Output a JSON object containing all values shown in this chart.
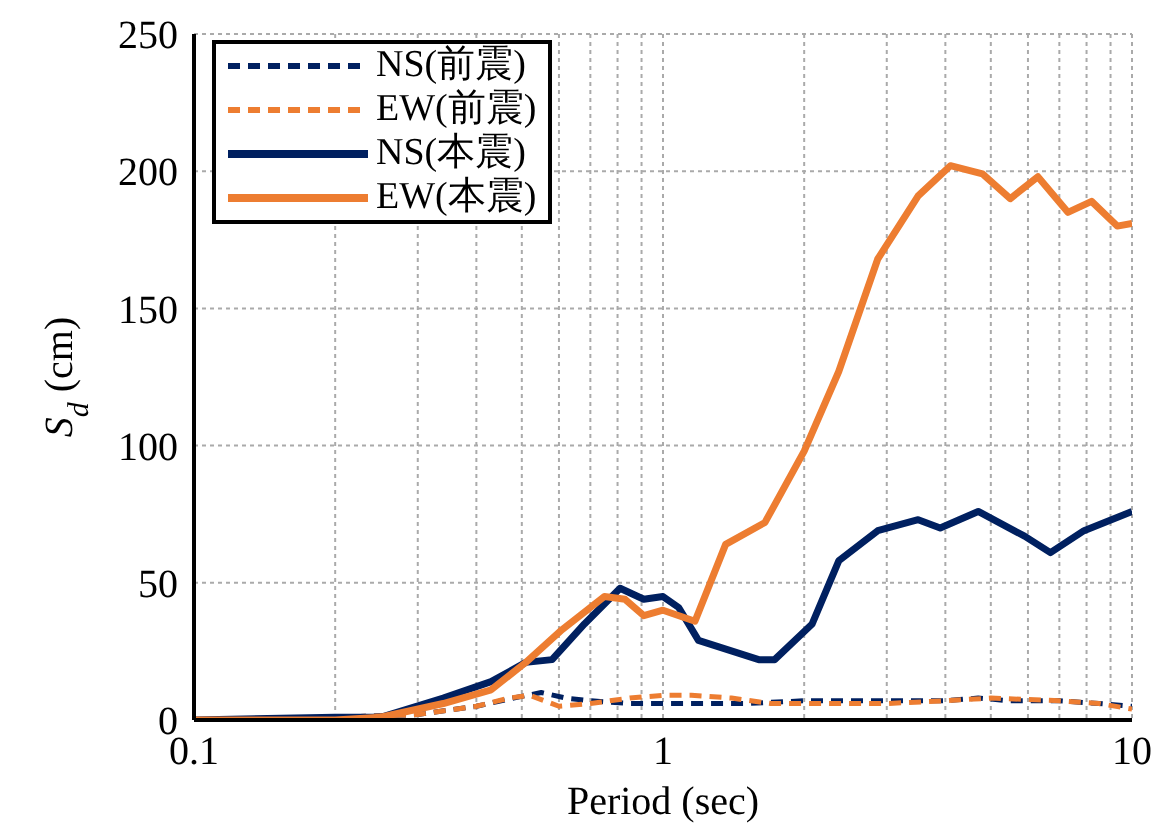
{
  "chart_data": {
    "type": "line",
    "xlabel": "Period (sec)",
    "ylabel": "S$_{d}$ (cm)",
    "log": "x",
    "xlim": [
      0.1,
      10
    ],
    "xticks": [
      0.1,
      {
        "value": 0.2,
        "label": null
      },
      {
        "value": 0.3,
        "label": null
      },
      {
        "value": 0.4,
        "label": null
      },
      {
        "value": 0.5,
        "label": null
      },
      {
        "value": 0.6,
        "label": null
      },
      {
        "value": 0.7,
        "label": null
      },
      {
        "value": 0.8,
        "label": null
      },
      {
        "value": 0.9,
        "label": null
      },
      1,
      {
        "value": 2,
        "label": null
      },
      {
        "value": 3,
        "label": null
      },
      {
        "value": 4,
        "label": null
      },
      {
        "value": 5,
        "label": null
      },
      {
        "value": 6,
        "label": null
      },
      {
        "value": 7,
        "label": null
      },
      {
        "value": 8,
        "label": null
      },
      {
        "value": 9,
        "label": null
      },
      10
    ],
    "ylim": [
      0,
      250
    ],
    "yticks": [
      0,
      50,
      100,
      150,
      200,
      250
    ],
    "grid": true,
    "legend": "top left",
    "marker": "none",
    "series": [
      {
        "name": "NS(前震)",
        "color": "#002060",
        "line_style": "dashed",
        "x": [
          0.1,
          0.2,
          0.3,
          0.4,
          0.48,
          0.55,
          0.62,
          0.7,
          0.85,
          1.0,
          1.2,
          1.5,
          2.0,
          2.5,
          3.0,
          4.0,
          4.7,
          5.5,
          7.0,
          8.5,
          10
        ],
        "values": [
          0,
          1,
          2,
          5,
          8,
          10,
          8,
          7,
          6,
          6,
          6,
          6,
          7,
          7,
          7,
          7,
          8,
          7,
          7,
          6,
          5
        ]
      },
      {
        "name": "EW(前震)",
        "color": "#ed7d31",
        "line_style": "dashed",
        "x": [
          0.1,
          0.2,
          0.3,
          0.4,
          0.47,
          0.52,
          0.6,
          0.7,
          0.85,
          1.0,
          1.15,
          1.4,
          1.7,
          2.0,
          2.5,
          3.0,
          4.0,
          5.0,
          7.0,
          8.5,
          10
        ],
        "values": [
          0,
          1,
          2,
          5,
          8,
          9,
          5,
          6,
          8,
          9,
          9,
          8,
          6,
          6,
          6,
          6,
          7,
          8,
          7,
          6,
          4
        ]
      },
      {
        "name": "NS(本震)",
        "color": "#002060",
        "line_style": "solid",
        "x": [
          0.1,
          0.2,
          0.25,
          0.34,
          0.43,
          0.51,
          0.58,
          0.68,
          0.81,
          0.91,
          1.0,
          1.08,
          1.19,
          1.6,
          1.73,
          2.08,
          2.37,
          2.87,
          3.5,
          3.9,
          4.7,
          5.9,
          6.7,
          7.9,
          10
        ],
        "values": [
          0,
          1,
          1,
          8,
          14,
          21,
          22,
          35,
          48,
          44,
          45,
          41,
          29,
          22,
          22,
          35,
          58,
          69,
          73,
          70,
          76,
          67,
          61,
          69,
          76
        ]
      },
      {
        "name": "EW(本震)",
        "color": "#ed7d31",
        "line_style": "solid",
        "x": [
          0.1,
          0.2,
          0.25,
          0.34,
          0.43,
          0.51,
          0.61,
          0.75,
          0.83,
          0.91,
          1.0,
          1.17,
          1.36,
          1.65,
          2.0,
          2.37,
          2.87,
          3.5,
          4.1,
          4.8,
          5.5,
          6.3,
          7.3,
          8.2,
          9.3,
          10
        ],
        "values": [
          0,
          0,
          1,
          6,
          11,
          21,
          33,
          45,
          44,
          38,
          40,
          36,
          64,
          72,
          98,
          127,
          168,
          191,
          202,
          199,
          190,
          198,
          185,
          189,
          180,
          181
        ]
      }
    ]
  }
}
